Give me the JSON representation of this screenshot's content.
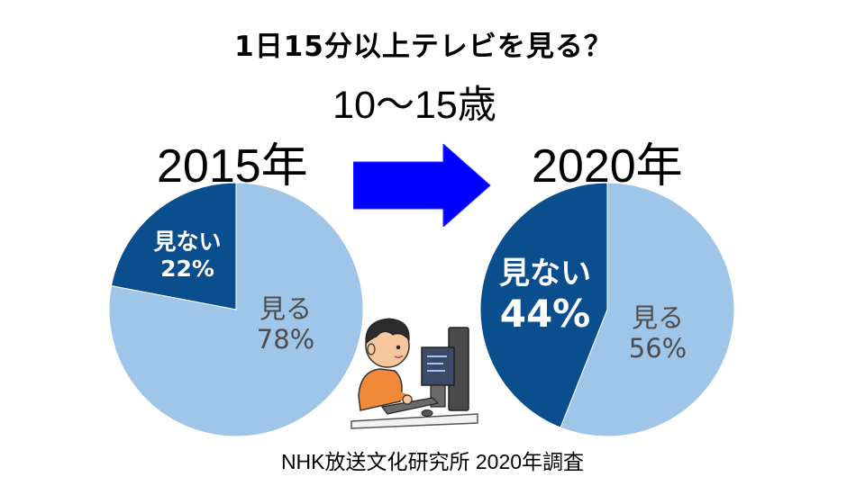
{
  "title": "1日15分以上テレビを見る？",
  "subtitle": "10〜15歳",
  "source": "NHK放送文化研究所 2020年調査",
  "colors": {
    "watch": "#9fc5e8",
    "not_watch": "#0b4e8e",
    "arrow": "#0000ff"
  },
  "illustration_icon": "boy-at-computer-icon",
  "arrow_icon": "right-arrow-icon",
  "chart_data": [
    {
      "type": "pie",
      "year_label": "2015年",
      "slices": [
        {
          "label": "見ない",
          "value": 22,
          "value_text": "22%"
        },
        {
          "label": "見る",
          "value": 78,
          "value_text": "78%"
        }
      ]
    },
    {
      "type": "pie",
      "year_label": "2020年",
      "slices": [
        {
          "label": "見ない",
          "value": 44,
          "value_text": "44%"
        },
        {
          "label": "見る",
          "value": 56,
          "value_text": "56%"
        }
      ]
    }
  ]
}
